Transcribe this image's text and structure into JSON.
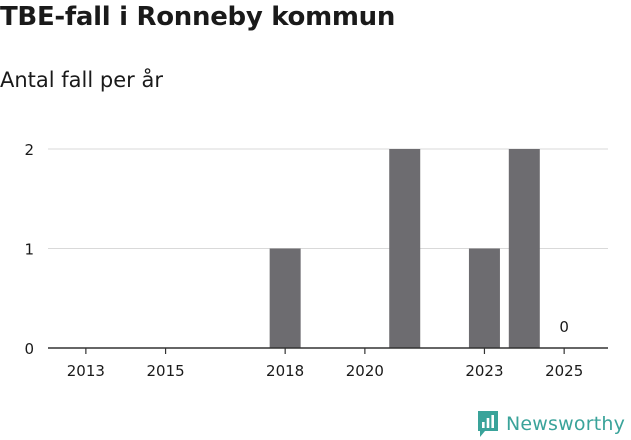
{
  "chart_data": {
    "type": "bar",
    "title": "TBE-fall i Ronneby kommun",
    "subtitle": "Antal fall per år",
    "x": [
      2013,
      2014,
      2015,
      2016,
      2017,
      2018,
      2019,
      2020,
      2021,
      2022,
      2023,
      2024,
      2025
    ],
    "values": [
      0,
      0,
      0,
      0,
      0,
      1,
      0,
      0,
      2,
      0,
      1,
      2,
      0
    ],
    "x_ticks": [
      "2013",
      "2015",
      "2018",
      "2020",
      "2023",
      "2025"
    ],
    "y_ticks": [
      "0",
      "1",
      "2"
    ],
    "ylim": [
      0,
      2
    ],
    "annotation": {
      "x": 2025,
      "text": "0"
    },
    "bar_color": "#6d6c70",
    "grid": true,
    "xlabel": "",
    "ylabel": ""
  },
  "brand": {
    "name": "Newsworthy",
    "icon": "newsworthy-logo-icon",
    "color": "#3aa39a"
  }
}
